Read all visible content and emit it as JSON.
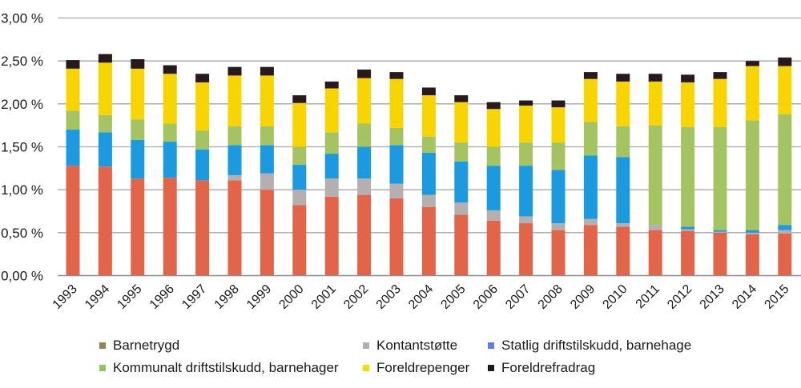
{
  "chart_data": {
    "type": "bar",
    "stacked": true,
    "title": "",
    "xlabel": "",
    "ylabel": "",
    "ylim": [
      0,
      3.0
    ],
    "grid": true,
    "legend_position": "bottom",
    "y_ticks": [
      "0,00 %",
      "0,50 %",
      "1,00 %",
      "1,50 %",
      "2,00 %",
      "2,50 %",
      "3,00 %"
    ],
    "y_tick_values": [
      0,
      0.5,
      1.0,
      1.5,
      2.0,
      2.5,
      3.0
    ],
    "categories": [
      "1993",
      "1994",
      "1995",
      "1996",
      "1997",
      "1998",
      "1999",
      "2000",
      "2001",
      "2002",
      "2003",
      "2004",
      "2005",
      "2006",
      "2007",
      "2008",
      "2009",
      "2010",
      "2011",
      "2012",
      "2013",
      "2014",
      "2015"
    ],
    "series": [
      {
        "name": "Barnetrygd",
        "color": "#e2654a",
        "legend_color": "#9c7c50",
        "values": [
          1.28,
          1.27,
          1.13,
          1.14,
          1.11,
          1.11,
          1.0,
          0.82,
          0.92,
          0.94,
          0.9,
          0.8,
          0.71,
          0.64,
          0.61,
          0.53,
          0.59,
          0.57,
          0.53,
          0.52,
          0.5,
          0.48,
          0.49
        ]
      },
      {
        "name": "Kontantstøtte",
        "color": "#b4b0b0",
        "legend_color": "#b4b0b0",
        "values": [
          0.0,
          0.0,
          0.0,
          0.0,
          0.0,
          0.06,
          0.19,
          0.18,
          0.21,
          0.19,
          0.17,
          0.14,
          0.14,
          0.12,
          0.08,
          0.08,
          0.07,
          0.04,
          0.06,
          0.02,
          0.01,
          0.02,
          0.04
        ]
      },
      {
        "name": "Statlig driftstilskudd, barnehage",
        "color": "#1b9ae0",
        "legend_color": "#5a7fe0",
        "values": [
          0.42,
          0.4,
          0.45,
          0.42,
          0.36,
          0.35,
          0.33,
          0.29,
          0.29,
          0.37,
          0.45,
          0.49,
          0.48,
          0.52,
          0.59,
          0.62,
          0.74,
          0.77,
          0.0,
          0.03,
          0.02,
          0.03,
          0.06
        ]
      },
      {
        "name": "Kommunalt driftstilskudd, barnehager",
        "color": "#a4c462",
        "legend_color": "#8cc860",
        "values": [
          0.22,
          0.2,
          0.24,
          0.21,
          0.22,
          0.22,
          0.22,
          0.21,
          0.25,
          0.27,
          0.2,
          0.19,
          0.22,
          0.22,
          0.27,
          0.32,
          0.39,
          0.36,
          1.16,
          1.16,
          1.2,
          1.28,
          1.29
        ]
      },
      {
        "name": "Foreldrepenger",
        "color": "#f8d400",
        "legend_color": "#f0e000",
        "values": [
          0.49,
          0.61,
          0.59,
          0.58,
          0.56,
          0.59,
          0.59,
          0.51,
          0.51,
          0.53,
          0.57,
          0.48,
          0.47,
          0.44,
          0.43,
          0.41,
          0.5,
          0.52,
          0.51,
          0.52,
          0.56,
          0.63,
          0.56
        ]
      },
      {
        "name": "Foreldrefradrag",
        "color": "#261a1c",
        "legend_color": "#1a1a1a",
        "values": [
          0.1,
          0.1,
          0.11,
          0.1,
          0.1,
          0.1,
          0.1,
          0.09,
          0.08,
          0.1,
          0.08,
          0.09,
          0.08,
          0.08,
          0.06,
          0.08,
          0.08,
          0.09,
          0.09,
          0.09,
          0.08,
          0.06,
          0.1
        ]
      }
    ]
  },
  "legend": [
    {
      "label": "Barnetrygd"
    },
    {
      "label": "Kontantstøtte"
    },
    {
      "label": "Statlig driftstilskudd, barnehage"
    },
    {
      "label": "Kommunalt driftstilskudd, barnehager"
    },
    {
      "label": "Foreldrepenger"
    },
    {
      "label": "Foreldrefradrag"
    }
  ]
}
